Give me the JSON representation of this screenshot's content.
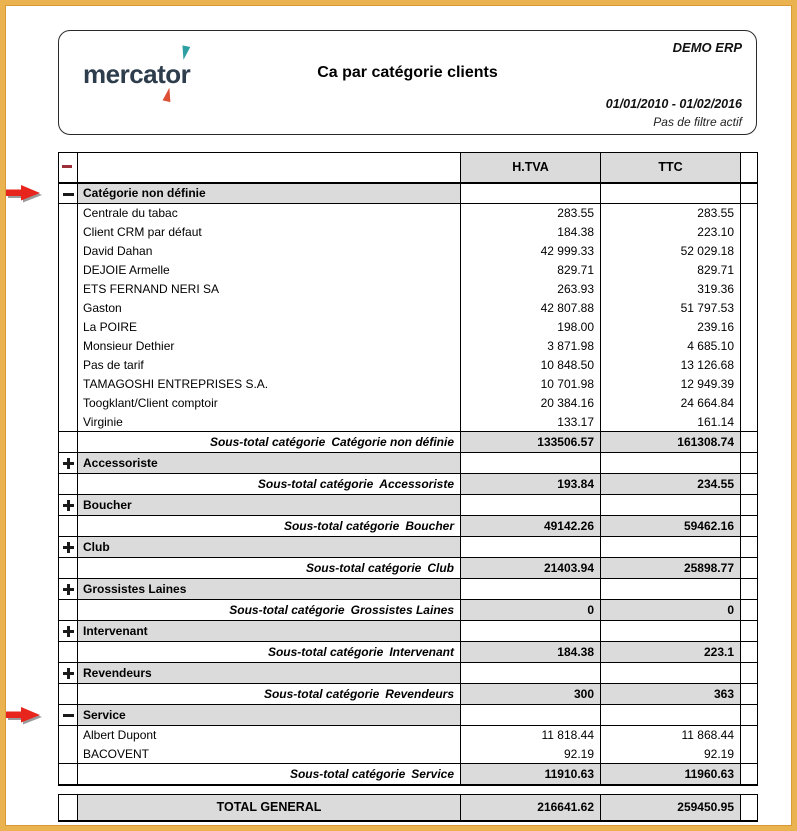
{
  "header": {
    "company": "DEMO ERP",
    "logo": {
      "part1": "mercat",
      "o": "o",
      "part2": "r"
    },
    "title": "Ca par catégorie clients",
    "date_range": "01/01/2010 - 01/02/2016",
    "filter_status": "Pas de filtre actif"
  },
  "table": {
    "columns": {
      "htva": "H.TVA",
      "ttc": "TTC"
    },
    "subtotal_prefix": "Sous-total catégorie",
    "groups": [
      {
        "name": "Catégorie non définie",
        "expanded": true,
        "clients": [
          {
            "name": "Centrale du tabac",
            "htva": "283.55",
            "ttc": "283.55"
          },
          {
            "name": "Client CRM par défaut",
            "htva": "184.38",
            "ttc": "223.10"
          },
          {
            "name": "David Dahan",
            "htva": "42 999.33",
            "ttc": "52 029.18"
          },
          {
            "name": "DEJOIE Armelle",
            "htva": "829.71",
            "ttc": "829.71"
          },
          {
            "name": "ETS FERNAND NERI SA",
            "htva": "263.93",
            "ttc": "319.36"
          },
          {
            "name": "Gaston",
            "htva": "42 807.88",
            "ttc": "51 797.53"
          },
          {
            "name": "La POIRE",
            "htva": "198.00",
            "ttc": "239.16"
          },
          {
            "name": "Monsieur Dethier",
            "htva": "3 871.98",
            "ttc": "4 685.10"
          },
          {
            "name": "Pas de tarif",
            "htva": "10 848.50",
            "ttc": "13 126.68"
          },
          {
            "name": "TAMAGOSHI ENTREPRISES S.A.",
            "htva": "10 701.98",
            "ttc": "12 949.39"
          },
          {
            "name": "Toogklant/Client comptoir",
            "htva": "20 384.16",
            "ttc": "24 664.84"
          },
          {
            "name": "Virginie",
            "htva": "133.17",
            "ttc": "161.14"
          }
        ],
        "subtotal_htva": "133506.57",
        "subtotal_ttc": "161308.74"
      },
      {
        "name": "Accessoriste",
        "expanded": false,
        "clients": [],
        "subtotal_htva": "193.84",
        "subtotal_ttc": "234.55"
      },
      {
        "name": "Boucher",
        "expanded": false,
        "clients": [],
        "subtotal_htva": "49142.26",
        "subtotal_ttc": "59462.16"
      },
      {
        "name": "Club",
        "expanded": false,
        "clients": [],
        "subtotal_htva": "21403.94",
        "subtotal_ttc": "25898.77"
      },
      {
        "name": "Grossistes Laines",
        "expanded": false,
        "clients": [],
        "subtotal_htva": "0",
        "subtotal_ttc": "0"
      },
      {
        "name": "Intervenant",
        "expanded": false,
        "clients": [],
        "subtotal_htva": "184.38",
        "subtotal_ttc": "223.1"
      },
      {
        "name": "Revendeurs",
        "expanded": false,
        "clients": [],
        "subtotal_htva": "300",
        "subtotal_ttc": "363"
      },
      {
        "name": "Service",
        "expanded": true,
        "clients": [
          {
            "name": "Albert Dupont",
            "htva": "11 818.44",
            "ttc": "11 868.44"
          },
          {
            "name": "BACOVENT",
            "htva": "92.19",
            "ttc": "92.19"
          }
        ],
        "subtotal_htva": "11910.63",
        "subtotal_ttc": "11960.63"
      }
    ],
    "total": {
      "label": "TOTAL GENERAL",
      "htva": "216641.62",
      "ttc": "259450.95"
    }
  },
  "annotations": {
    "arrow_color": "#e8251d",
    "arrow_shadow": "#8a8a8a"
  }
}
